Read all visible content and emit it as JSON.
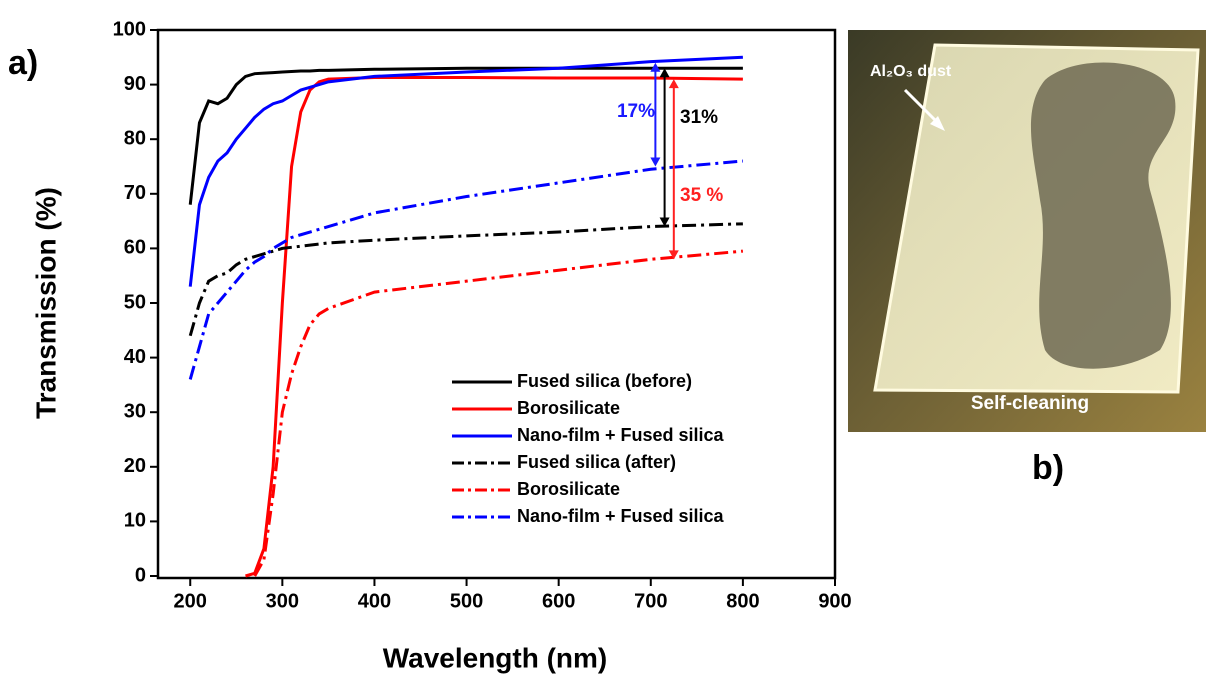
{
  "chart_data": {
    "type": "line",
    "panel_label": "a)",
    "x_label": "Wavelength (nm)",
    "y_label": "Transmission (%)",
    "x": [
      200,
      210,
      220,
      230,
      240,
      250,
      260,
      270,
      280,
      290,
      300,
      310,
      320,
      330,
      340,
      350,
      400,
      500,
      600,
      700,
      800
    ],
    "series": [
      {
        "name": "Fused silica (before)",
        "color": "#000000",
        "linestyle": "solid",
        "values": [
          68,
          83,
          87,
          86.5,
          87.5,
          90,
          91.5,
          92,
          92.1,
          92.2,
          92.3,
          92.4,
          92.5,
          92.5,
          92.6,
          92.6,
          92.8,
          93,
          93,
          93,
          93
        ]
      },
      {
        "name": "Borosilicate",
        "color": "#ff0000",
        "linestyle": "solid",
        "values": [
          null,
          null,
          null,
          null,
          null,
          null,
          0,
          0.5,
          5,
          20,
          50,
          75,
          85,
          89,
          90.5,
          91,
          91.3,
          91.3,
          91.2,
          91.2,
          91
        ]
      },
      {
        "name": "Nano-film + Fused silica",
        "color": "#0000ff",
        "linestyle": "solid",
        "values": [
          53,
          68,
          73,
          76,
          77.5,
          80,
          82,
          84,
          85.5,
          86.5,
          87,
          88,
          89,
          89.5,
          90,
          90.5,
          91.5,
          92.3,
          93,
          94.2,
          95
        ]
      },
      {
        "name": "Fused silica (after)",
        "color": "#000000",
        "linestyle": "dashdot",
        "values": [
          44,
          50,
          54,
          55,
          55.5,
          57,
          58,
          58.5,
          59,
          59.5,
          60,
          60.2,
          60.4,
          60.6,
          60.8,
          61,
          61.5,
          62.3,
          63,
          64,
          64.5
        ]
      },
      {
        "name": "Borosilicate",
        "color": "#ff0000",
        "linestyle": "dashdot",
        "values": [
          null,
          null,
          null,
          null,
          null,
          null,
          null,
          0,
          3,
          15,
          30,
          37,
          42,
          46,
          48,
          49,
          52,
          54,
          56,
          58,
          59.5
        ]
      },
      {
        "name": "Nano-film + Fused silica",
        "color": "#0000ff",
        "linestyle": "dashdot",
        "values": [
          36,
          42,
          48,
          50,
          52,
          54,
          56,
          57.5,
          58.5,
          60,
          61,
          62,
          62.5,
          63,
          63.5,
          64,
          66.5,
          69.5,
          72,
          74.5,
          76
        ]
      }
    ],
    "xlim": [
      165,
      900
    ],
    "xticks": [
      200,
      300,
      400,
      500,
      600,
      700,
      800,
      900
    ],
    "ylim": [
      0,
      100
    ],
    "yticks": [
      0,
      10,
      20,
      30,
      40,
      50,
      60,
      70,
      80,
      90,
      100
    ],
    "annotations": [
      {
        "text": "17%",
        "color": "#1a1aff"
      },
      {
        "text": "31%",
        "color": "#000000"
      },
      {
        "text": "35 %",
        "color": "#ff2020"
      }
    ]
  },
  "photo": {
    "panel_label": "b)",
    "dust_label": "Al₂O₃ dust",
    "clean_label": "Self-cleaning"
  }
}
